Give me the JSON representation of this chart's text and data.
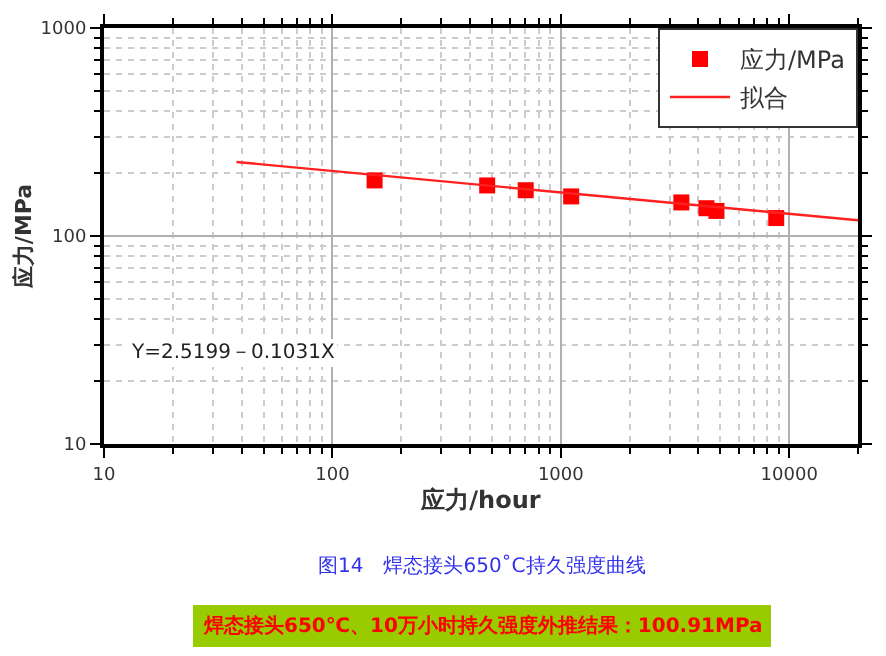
{
  "chart_data": {
    "type": "scatter",
    "xlabel": "应力/hour",
    "ylabel": "应力/MPa",
    "log": "xy",
    "xlim": [
      10,
      20000
    ],
    "ylim": [
      10,
      1000
    ],
    "xticks": [
      10,
      100,
      1000,
      10000
    ],
    "yticks": [
      10,
      100,
      1000
    ],
    "grid": true,
    "legend": "top right",
    "series": [
      {
        "name": "应力/MPa",
        "marker": "square",
        "color": "#ff0000",
        "x": [
          153,
          476,
          702,
          1110,
          3370,
          4340,
          4800,
          8770
        ],
        "values": [
          185,
          175,
          166,
          155,
          145,
          136,
          132,
          122
        ]
      },
      {
        "name": "拟合",
        "type": "line",
        "color": "#ff2020",
        "x": [
          38,
          20000
        ],
        "values": [
          227,
          119
        ]
      }
    ],
    "annotations": [
      "Y=2.5199－0.1031X",
      "图14　焊态接头650˚C持久强度曲线",
      "焊态接头650℃、10万小时持久强度外推结果：100.91MPa"
    ]
  }
}
